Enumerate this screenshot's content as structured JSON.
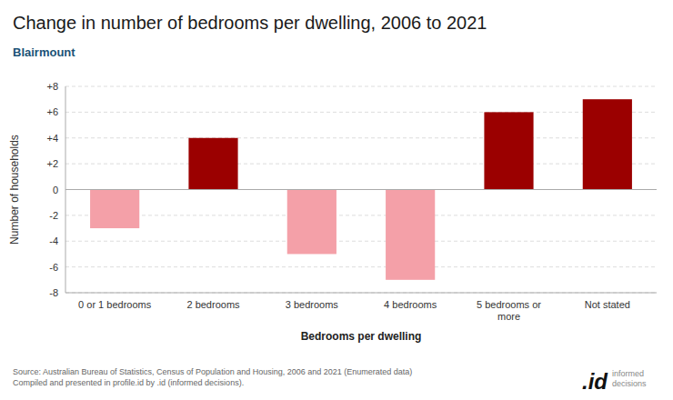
{
  "chart_data": {
    "type": "bar",
    "title": "Change in number of bedrooms per dwelling, 2006 to 2021",
    "subtitle": "Blairmount",
    "x_label": "Bedrooms per dwelling",
    "y_label": "Number of households",
    "categories": [
      "0 or 1 bedrooms",
      "2 bedrooms",
      "3 bedrooms",
      "4 bedrooms",
      "5 bedrooms or\nmore",
      "Not stated"
    ],
    "values": [
      -3,
      4,
      -5,
      -7,
      6,
      7
    ],
    "colors": [
      "#f4a0a8",
      "#9b0000",
      "#f4a0a8",
      "#f4a0a8",
      "#9b0000",
      "#9b0000"
    ],
    "ylim": [
      -8,
      8
    ],
    "yticks": [
      -8,
      -6,
      -4,
      -2,
      0,
      {
        "value": 2,
        "label": "+2"
      },
      {
        "value": 4,
        "label": "+4"
      },
      {
        "value": 6,
        "label": "+6"
      },
      {
        "value": 8,
        "label": "+8"
      }
    ],
    "grid": true,
    "annotations": [
      "Source: Australian Bureau of Statistics, Census of Population and Housing, 2006 and 2021 (Enumerated data)\nCompiled and presented in profile.id by .id (informed decisions).",
      ".id",
      "informed\ndecisions"
    ]
  }
}
